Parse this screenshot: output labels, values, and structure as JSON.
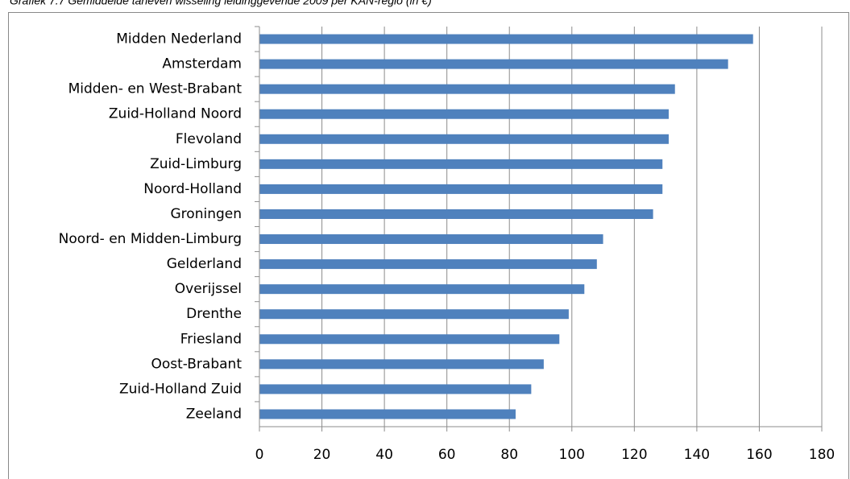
{
  "chart_data": {
    "type": "hbar",
    "title": "Grafiek 7.7 Gemiddelde tarieven wisseling leidinggevende 2009 per KAN-regio (in €)",
    "categories": [
      "Midden Nederland",
      "Amsterdam",
      "Midden- en West-Brabant",
      "Zuid-Holland Noord",
      "Flevoland",
      "Zuid-Limburg",
      "Noord-Holland",
      "Groningen",
      "Noord- en Midden-Limburg",
      "Gelderland",
      "Overijssel",
      "Drenthe",
      "Friesland",
      "Oost-Brabant",
      "Zuid-Holland Zuid",
      "Zeeland"
    ],
    "values": [
      158,
      150,
      133,
      131,
      131,
      129,
      129,
      126,
      110,
      108,
      104,
      99,
      96,
      91,
      87,
      82
    ],
    "color": "#4f81bd",
    "xlim": [
      0,
      180
    ],
    "xticks": [
      0,
      20,
      40,
      60,
      80,
      100,
      120,
      140,
      160,
      180
    ],
    "grid": true
  }
}
